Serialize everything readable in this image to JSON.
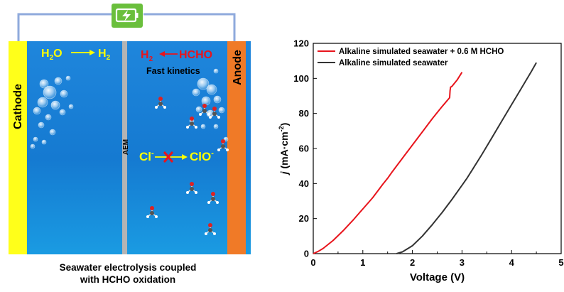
{
  "diagram": {
    "battery_icon": "battery-charging-icon",
    "cathode_label": "Cathode",
    "anode_label": "Anode",
    "membrane_label": "AEM",
    "cathode_reaction": {
      "reactant": "H2O",
      "product": "H2"
    },
    "anode_reaction": {
      "product": "H2",
      "reactant": "HCHO"
    },
    "anode_note": "Fast kinetics",
    "blocked_reaction": {
      "reactant": "Cl-",
      "product": "ClO-"
    },
    "caption_line1": "Seawater electrolysis coupled",
    "caption_line2": "with HCHO oxidation",
    "colors": {
      "electrolyte": "#1a7fd4",
      "cathode": "#ffff1a",
      "anode": "#f07a27",
      "membrane": "#b4b4b4",
      "wire": "#8faadc",
      "battery_bg": "#6abf3c",
      "highlight_text": "#ffff00",
      "product_text": "#e8141c",
      "block_mark": "#e8141c"
    }
  },
  "chart_data": {
    "type": "line",
    "xlabel": "Voltage (V)",
    "ylabel_symbol": "j",
    "ylabel_units": "(mA·cm",
    "ylabel_sup": "-2",
    "ylabel_close": ")",
    "xlim": [
      0,
      5
    ],
    "ylim": [
      0,
      120
    ],
    "xticks": [
      0,
      1,
      2,
      3,
      4,
      5
    ],
    "yticks": [
      0,
      20,
      40,
      60,
      80,
      100,
      120
    ],
    "legend_position": "top-left",
    "series": [
      {
        "name": "Alkaline simulated seawater + 0.6 M HCHO",
        "color": "#e8141c",
        "points": [
          [
            0,
            0
          ],
          [
            0.1,
            1.3
          ],
          [
            0.2,
            3.0
          ],
          [
            0.4,
            7.5
          ],
          [
            0.6,
            13
          ],
          [
            0.8,
            19
          ],
          [
            1.0,
            25.5
          ],
          [
            1.2,
            32
          ],
          [
            1.4,
            39.5
          ],
          [
            1.5,
            43
          ],
          [
            1.6,
            47
          ],
          [
            1.8,
            54.5
          ],
          [
            2.0,
            62
          ],
          [
            2.2,
            69.5
          ],
          [
            2.4,
            77
          ],
          [
            2.6,
            84
          ],
          [
            2.75,
            89
          ],
          [
            2.76,
            93
          ],
          [
            2.77,
            95
          ],
          [
            2.8,
            95.5
          ],
          [
            2.9,
            99
          ],
          [
            3.0,
            103.5
          ]
        ]
      },
      {
        "name": "Alkaline simulated seawater",
        "color": "#333333",
        "points": [
          [
            1.68,
            0
          ],
          [
            1.8,
            1
          ],
          [
            2.0,
            4.5
          ],
          [
            2.2,
            10
          ],
          [
            2.4,
            16.5
          ],
          [
            2.6,
            23.5
          ],
          [
            2.8,
            31
          ],
          [
            3.0,
            39
          ],
          [
            3.1,
            43
          ],
          [
            3.2,
            47.5
          ],
          [
            3.4,
            56.5
          ],
          [
            3.6,
            66
          ],
          [
            3.8,
            75.5
          ],
          [
            4.0,
            85
          ],
          [
            4.2,
            94.5
          ],
          [
            4.4,
            104
          ],
          [
            4.5,
            109
          ]
        ]
      }
    ]
  }
}
